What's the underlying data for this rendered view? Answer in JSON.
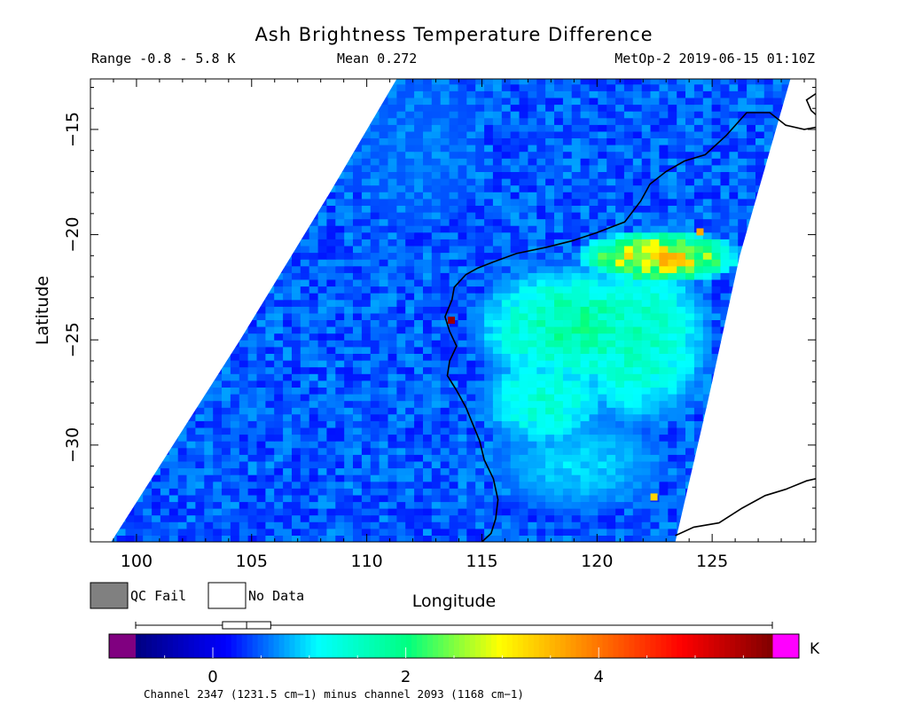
{
  "chart_data": {
    "type": "heatmap",
    "title": "Ash Brightness Temperature Difference",
    "range_label": "Range -0.8 - 5.8 K",
    "mean_label": "Mean 0.272",
    "satellite_label": "MetOp-2 2019-06-15 01:10Z",
    "xlabel": "Longitude",
    "ylabel": "Latitude",
    "xlim": [
      98,
      129.5
    ],
    "ylim": [
      -34.6,
      -12.6
    ],
    "x_ticks": [
      100,
      105,
      110,
      115,
      120,
      125
    ],
    "x_tick_labels": [
      "100",
      "105",
      "110",
      "115",
      "120",
      "125"
    ],
    "y_ticks": [
      -15,
      -20,
      -25,
      -30
    ],
    "y_tick_labels": [
      "−15",
      "−20",
      "−25",
      "−30"
    ],
    "legend": [
      {
        "label": "QC Fail",
        "color": "#808080"
      },
      {
        "label": "No Data",
        "color": "#ffffff"
      }
    ],
    "colorbar": {
      "vmin": -0.8,
      "vmax": 5.8,
      "unit_label": "K",
      "tick_values": [
        0,
        2,
        4
      ],
      "tick_labels": [
        "0",
        "2",
        "4"
      ],
      "under_color": "#800080",
      "over_color": "#ff00ff",
      "colors": [
        "#000080",
        "#0000ff",
        "#00ffff",
        "#00ff80",
        "#ffff00",
        "#ff8000",
        "#ff0000",
        "#800000"
      ],
      "caption": "Channel 2347 (1231.5 cm−1) minus channel 2093 (1168 cm−1)"
    },
    "boxplot": {
      "min": -0.8,
      "q1": 0.1,
      "median": 0.35,
      "q3": 0.6,
      "max": 5.8
    },
    "swath": {
      "west_edge": [
        [
          98.9,
          -34.6
        ],
        [
          104.5,
          -25
        ],
        [
          108.4,
          -18
        ],
        [
          111.3,
          -12.6
        ]
      ],
      "east_edge": [
        [
          123.4,
          -34.6
        ],
        [
          124.8,
          -28
        ],
        [
          126.2,
          -21
        ],
        [
          128.4,
          -12.6
        ]
      ]
    },
    "regions": [
      {
        "center": [
          122.5,
          -21.2
        ],
        "radius": [
          3.8,
          1.4
        ],
        "value": 3.4
      },
      {
        "center": [
          119,
          -24.5
        ],
        "radius": [
          5,
          3.2
        ],
        "value": 1.9
      },
      {
        "center": [
          121.5,
          -25
        ],
        "radius": [
          3.5,
          4.5
        ],
        "value": 1.7
      },
      {
        "center": [
          117.5,
          -28
        ],
        "radius": [
          3,
          2.5
        ],
        "value": 1.5
      },
      {
        "center": [
          119,
          -31
        ],
        "radius": [
          4,
          2.5
        ],
        "value": 1.0
      },
      {
        "center": [
          112,
          -16
        ],
        "radius": [
          3,
          4
        ],
        "value": 0.5
      }
    ],
    "outliers": [
      {
        "lon": 113.7,
        "lat": -24.1,
        "value": 5.6
      },
      {
        "lon": 122.5,
        "lat": -32.5,
        "value": 3.3
      },
      {
        "lon": 124.5,
        "lat": -19.9,
        "value": 3.6
      }
    ],
    "coastline": [
      [
        115.0,
        -34.6
      ],
      [
        115.4,
        -34.2
      ],
      [
        115.6,
        -33.5
      ],
      [
        115.7,
        -32.6
      ],
      [
        115.5,
        -31.6
      ],
      [
        115.1,
        -30.7
      ],
      [
        114.9,
        -29.8
      ],
      [
        114.6,
        -29.0
      ],
      [
        114.3,
        -28.2
      ],
      [
        113.9,
        -27.4
      ],
      [
        113.5,
        -26.7
      ],
      [
        113.6,
        -26.0
      ],
      [
        113.9,
        -25.3
      ],
      [
        113.6,
        -24.6
      ],
      [
        113.4,
        -23.9
      ],
      [
        113.7,
        -23.1
      ],
      [
        113.8,
        -22.5
      ],
      [
        114.3,
        -21.9
      ],
      [
        114.8,
        -21.6
      ],
      [
        115.5,
        -21.3
      ],
      [
        116.5,
        -20.9
      ],
      [
        117.8,
        -20.6
      ],
      [
        118.9,
        -20.3
      ],
      [
        120.0,
        -19.9
      ],
      [
        121.2,
        -19.4
      ],
      [
        121.9,
        -18.4
      ],
      [
        122.3,
        -17.6
      ],
      [
        123.0,
        -17.0
      ],
      [
        123.8,
        -16.5
      ],
      [
        124.7,
        -16.2
      ],
      [
        125.6,
        -15.3
      ],
      [
        126.5,
        -14.2
      ],
      [
        127.5,
        -14.2
      ],
      [
        128.2,
        -14.8
      ],
      [
        129.0,
        -15.0
      ],
      [
        129.5,
        -14.9
      ]
    ],
    "coastline_south": [
      [
        123.4,
        -34.3
      ],
      [
        124.2,
        -33.9
      ],
      [
        125.3,
        -33.7
      ],
      [
        126.3,
        -33.0
      ],
      [
        127.3,
        -32.4
      ],
      [
        128.2,
        -32.1
      ],
      [
        129.1,
        -31.7
      ],
      [
        129.5,
        -31.6
      ]
    ],
    "coastline_ne": [
      [
        129.5,
        -13.3
      ],
      [
        129.1,
        -13.6
      ],
      [
        129.3,
        -14.1
      ],
      [
        129.5,
        -14.3
      ]
    ]
  }
}
